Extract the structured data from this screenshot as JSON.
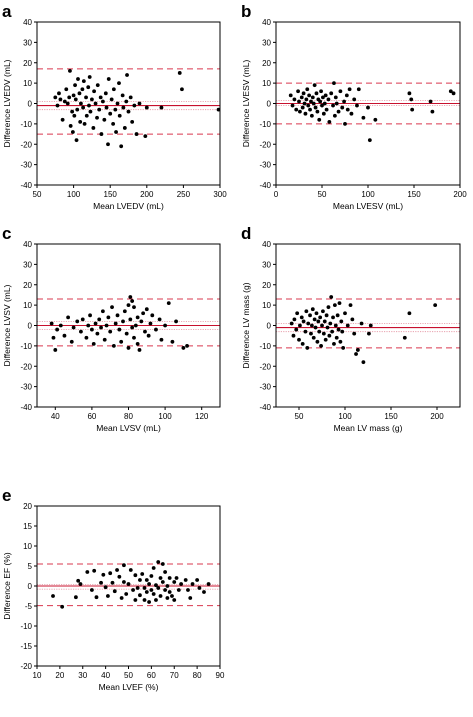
{
  "colors": {
    "mean_line": "#c8102e",
    "limit_line": "#d9384f",
    "ci_line": "#e8a0ad",
    "point": "#000000",
    "frame": "#000000"
  },
  "chart_data": [
    {
      "panel": "a",
      "type": "scatter",
      "xlabel": "Mean LVEDV (mL)",
      "ylabel": "Difference LVEDV (mL)",
      "xlim": [
        50,
        300
      ],
      "ylim": [
        -40,
        40
      ],
      "xticks": [
        50,
        100,
        150,
        200,
        250,
        300
      ],
      "yticks": [
        -40,
        -30,
        -20,
        -10,
        0,
        10,
        20,
        30,
        40
      ],
      "grid": false,
      "mean_diff": -1,
      "mean_ci": [
        -3,
        1
      ],
      "loa_upper": 17,
      "loa_lower": -15,
      "points": [
        [
          75,
          3
        ],
        [
          78,
          -1
        ],
        [
          80,
          5
        ],
        [
          82,
          2
        ],
        [
          85,
          -8
        ],
        [
          88,
          1
        ],
        [
          90,
          7
        ],
        [
          92,
          0
        ],
        [
          94,
          3
        ],
        [
          95,
          16
        ],
        [
          96,
          -11
        ],
        [
          98,
          -4
        ],
        [
          99,
          -14
        ],
        [
          100,
          4
        ],
        [
          101,
          -6
        ],
        [
          102,
          9
        ],
        [
          103,
          2
        ],
        [
          104,
          -18
        ],
        [
          105,
          -3
        ],
        [
          106,
          12
        ],
        [
          108,
          5
        ],
        [
          109,
          -9
        ],
        [
          110,
          0
        ],
        [
          112,
          7
        ],
        [
          113,
          -2
        ],
        [
          114,
          11
        ],
        [
          115,
          -10
        ],
        [
          117,
          3
        ],
        [
          118,
          -6
        ],
        [
          120,
          8
        ],
        [
          121,
          -1
        ],
        [
          122,
          13
        ],
        [
          123,
          -4
        ],
        [
          125,
          2
        ],
        [
          127,
          -12
        ],
        [
          128,
          6
        ],
        [
          130,
          0
        ],
        [
          132,
          -7
        ],
        [
          133,
          9
        ],
        [
          135,
          -3
        ],
        [
          137,
          3
        ],
        [
          138,
          -15
        ],
        [
          140,
          1
        ],
        [
          142,
          -8
        ],
        [
          144,
          5
        ],
        [
          145,
          -2
        ],
        [
          147,
          -20
        ],
        [
          148,
          12
        ],
        [
          150,
          -5
        ],
        [
          152,
          2
        ],
        [
          154,
          -10
        ],
        [
          155,
          7
        ],
        [
          157,
          -3
        ],
        [
          158,
          -14
        ],
        [
          160,
          0
        ],
        [
          162,
          10
        ],
        [
          163,
          -6
        ],
        [
          165,
          -21
        ],
        [
          167,
          4
        ],
        [
          168,
          -2
        ],
        [
          170,
          -12
        ],
        [
          172,
          1
        ],
        [
          173,
          14
        ],
        [
          175,
          -4
        ],
        [
          178,
          3
        ],
        [
          180,
          -9
        ],
        [
          183,
          -1
        ],
        [
          186,
          -15
        ],
        [
          190,
          0
        ],
        [
          198,
          -16
        ],
        [
          200,
          -2
        ],
        [
          220,
          -2
        ],
        [
          245,
          15
        ],
        [
          248,
          7
        ],
        [
          298,
          -3
        ]
      ]
    },
    {
      "panel": "b",
      "type": "scatter",
      "xlabel": "Mean LVESV (mL)",
      "ylabel": "Difference LVESV (mL)",
      "xlim": [
        0,
        200
      ],
      "ylim": [
        -40,
        40
      ],
      "xticks": [
        0,
        50,
        100,
        150,
        200
      ],
      "yticks": [
        -40,
        -30,
        -20,
        -10,
        0,
        10,
        20,
        30,
        40
      ],
      "grid": false,
      "mean_diff": 0,
      "mean_ci": [
        -1,
        1.5
      ],
      "loa_upper": 10,
      "loa_lower": -10,
      "points": [
        [
          16,
          4
        ],
        [
          18,
          -1
        ],
        [
          20,
          2
        ],
        [
          22,
          -3
        ],
        [
          24,
          6
        ],
        [
          25,
          1
        ],
        [
          26,
          -4
        ],
        [
          28,
          3
        ],
        [
          29,
          -2
        ],
        [
          30,
          5
        ],
        [
          31,
          0
        ],
        [
          32,
          -5
        ],
        [
          33,
          2
        ],
        [
          34,
          7
        ],
        [
          35,
          -1
        ],
        [
          36,
          4
        ],
        [
          37,
          -3
        ],
        [
          38,
          1
        ],
        [
          39,
          -6
        ],
        [
          40,
          3
        ],
        [
          41,
          0
        ],
        [
          42,
          9
        ],
        [
          43,
          -2
        ],
        [
          44,
          5
        ],
        [
          45,
          -4
        ],
        [
          46,
          2
        ],
        [
          47,
          -8
        ],
        [
          48,
          1
        ],
        [
          49,
          6
        ],
        [
          50,
          -1
        ],
        [
          51,
          3
        ],
        [
          52,
          -5
        ],
        [
          53,
          0
        ],
        [
          54,
          4
        ],
        [
          55,
          -3
        ],
        [
          57,
          2
        ],
        [
          58,
          -9
        ],
        [
          60,
          5
        ],
        [
          62,
          -1
        ],
        [
          63,
          10
        ],
        [
          64,
          -6
        ],
        [
          65,
          3
        ],
        [
          66,
          0
        ],
        [
          68,
          -4
        ],
        [
          70,
          6
        ],
        [
          72,
          -2
        ],
        [
          74,
          1
        ],
        [
          75,
          -10
        ],
        [
          77,
          4
        ],
        [
          78,
          -3
        ],
        [
          80,
          7
        ],
        [
          82,
          -5
        ],
        [
          85,
          2
        ],
        [
          88,
          -1
        ],
        [
          90,
          7
        ],
        [
          95,
          -7
        ],
        [
          100,
          -2
        ],
        [
          102,
          -18
        ],
        [
          108,
          -8
        ],
        [
          145,
          5
        ],
        [
          147,
          2
        ],
        [
          148,
          -3
        ],
        [
          168,
          1
        ],
        [
          170,
          -4
        ],
        [
          190,
          6
        ],
        [
          193,
          5
        ]
      ]
    },
    {
      "panel": "c",
      "type": "scatter",
      "xlabel": "Mean LVSV (mL)",
      "ylabel": "Difference LVSV (mL)",
      "xlim": [
        30,
        130
      ],
      "ylim": [
        -40,
        40
      ],
      "xticks": [
        40,
        60,
        80,
        100,
        120
      ],
      "yticks": [
        -40,
        -30,
        -20,
        -10,
        0,
        10,
        20,
        30,
        40
      ],
      "grid": false,
      "mean_diff": 0,
      "mean_ci": [
        -2,
        2
      ],
      "loa_upper": 13,
      "loa_lower": -10,
      "points": [
        [
          38,
          1
        ],
        [
          39,
          -6
        ],
        [
          40,
          -12
        ],
        [
          41,
          -2
        ],
        [
          43,
          0
        ],
        [
          45,
          -5
        ],
        [
          47,
          4
        ],
        [
          49,
          -8
        ],
        [
          50,
          -1
        ],
        [
          52,
          2
        ],
        [
          54,
          -3
        ],
        [
          55,
          3
        ],
        [
          57,
          -6
        ],
        [
          58,
          0
        ],
        [
          59,
          5
        ],
        [
          60,
          -2
        ],
        [
          61,
          -9
        ],
        [
          62,
          1
        ],
        [
          63,
          -4
        ],
        [
          64,
          3
        ],
        [
          65,
          -1
        ],
        [
          66,
          7
        ],
        [
          67,
          -7
        ],
        [
          68,
          0
        ],
        [
          69,
          4
        ],
        [
          70,
          -3
        ],
        [
          71,
          9
        ],
        [
          72,
          -10
        ],
        [
          73,
          1
        ],
        [
          74,
          5
        ],
        [
          75,
          -2
        ],
        [
          76,
          -8
        ],
        [
          77,
          2
        ],
        [
          78,
          7
        ],
        [
          79,
          -4
        ],
        [
          80,
          10
        ],
        [
          80,
          -11
        ],
        [
          81,
          14
        ],
        [
          81,
          3
        ],
        [
          82,
          -1
        ],
        [
          82,
          12
        ],
        [
          83,
          -6
        ],
        [
          83,
          9
        ],
        [
          84,
          0
        ],
        [
          85,
          4
        ],
        [
          85,
          -9
        ],
        [
          86,
          -12
        ],
        [
          87,
          2
        ],
        [
          88,
          6
        ],
        [
          89,
          -3
        ],
        [
          90,
          8
        ],
        [
          91,
          -5
        ],
        [
          92,
          1
        ],
        [
          93,
          5
        ],
        [
          95,
          -2
        ],
        [
          97,
          3
        ],
        [
          98,
          -7
        ],
        [
          100,
          0
        ],
        [
          102,
          11
        ],
        [
          104,
          -8
        ],
        [
          106,
          2
        ],
        [
          110,
          -11
        ],
        [
          112,
          -10
        ]
      ]
    },
    {
      "panel": "d",
      "type": "scatter",
      "xlabel": "Mean LV mass (g)",
      "ylabel": "Difference LV mass (g)",
      "xlim": [
        25,
        225
      ],
      "ylim": [
        -40,
        40
      ],
      "xticks": [
        50,
        100,
        150,
        200
      ],
      "yticks": [
        -40,
        -30,
        -20,
        -10,
        0,
        10,
        20,
        30,
        40
      ],
      "grid": false,
      "mean_diff": -1,
      "mean_ci": [
        -3,
        1
      ],
      "loa_upper": 13,
      "loa_lower": -11,
      "points": [
        [
          42,
          1
        ],
        [
          44,
          -5
        ],
        [
          45,
          3
        ],
        [
          47,
          -2
        ],
        [
          48,
          6
        ],
        [
          50,
          -7
        ],
        [
          51,
          0
        ],
        [
          53,
          4
        ],
        [
          54,
          -9
        ],
        [
          55,
          2
        ],
        [
          57,
          -3
        ],
        [
          58,
          7
        ],
        [
          59,
          -11
        ],
        [
          60,
          1
        ],
        [
          62,
          5
        ],
        [
          63,
          -4
        ],
        [
          64,
          0
        ],
        [
          65,
          8
        ],
        [
          66,
          -6
        ],
        [
          67,
          3
        ],
        [
          68,
          -1
        ],
        [
          69,
          6
        ],
        [
          70,
          -8
        ],
        [
          71,
          2
        ],
        [
          72,
          -3
        ],
        [
          73,
          4
        ],
        [
          74,
          -10
        ],
        [
          75,
          0
        ],
        [
          76,
          7
        ],
        [
          77,
          -4
        ],
        [
          78,
          2
        ],
        [
          79,
          -7
        ],
        [
          80,
          5
        ],
        [
          81,
          -1
        ],
        [
          82,
          9
        ],
        [
          83,
          -5
        ],
        [
          84,
          1
        ],
        [
          85,
          14
        ],
        [
          86,
          -3
        ],
        [
          87,
          4
        ],
        [
          88,
          -9
        ],
        [
          89,
          10
        ],
        [
          90,
          0
        ],
        [
          91,
          -6
        ],
        [
          92,
          5
        ],
        [
          93,
          -2
        ],
        [
          94,
          11
        ],
        [
          95,
          -8
        ],
        [
          96,
          2
        ],
        [
          97,
          -3
        ],
        [
          98,
          -11
        ],
        [
          100,
          6
        ],
        [
          103,
          0
        ],
        [
          106,
          10
        ],
        [
          108,
          3
        ],
        [
          110,
          -4
        ],
        [
          112,
          -14
        ],
        [
          114,
          -12
        ],
        [
          118,
          1
        ],
        [
          120,
          -18
        ],
        [
          126,
          -4
        ],
        [
          128,
          0
        ],
        [
          165,
          -6
        ],
        [
          170,
          6
        ],
        [
          198,
          10
        ]
      ]
    },
    {
      "panel": "e",
      "type": "scatter",
      "xlabel": "Mean LVEF (%)",
      "ylabel": "Difference EF (%)",
      "xlim": [
        10,
        90
      ],
      "ylim": [
        -20,
        20
      ],
      "xticks": [
        10,
        20,
        30,
        40,
        50,
        60,
        70,
        80,
        90
      ],
      "yticks": [
        -20,
        -15,
        -10,
        -5,
        0,
        5,
        10,
        15,
        20
      ],
      "grid": false,
      "mean_diff": 0,
      "mean_ci": [
        -0.8,
        0.4
      ],
      "loa_upper": 5.5,
      "loa_lower": -4.9,
      "points": [
        [
          17,
          -2.5
        ],
        [
          21,
          -5.2
        ],
        [
          27,
          -2.8
        ],
        [
          28,
          1.3
        ],
        [
          29,
          0.5
        ],
        [
          32,
          3.5
        ],
        [
          34,
          -1
        ],
        [
          35,
          3.8
        ],
        [
          36,
          -2.8
        ],
        [
          38,
          0.8
        ],
        [
          39,
          2.8
        ],
        [
          40,
          -0.3
        ],
        [
          41,
          -2.5
        ],
        [
          42,
          3.2
        ],
        [
          43,
          0.8
        ],
        [
          44,
          -1.3
        ],
        [
          45,
          4
        ],
        [
          46,
          2.3
        ],
        [
          47,
          -3
        ],
        [
          48,
          1
        ],
        [
          48,
          5.2
        ],
        [
          49,
          -2
        ],
        [
          50,
          0.5
        ],
        [
          51,
          4
        ],
        [
          52,
          -1
        ],
        [
          53,
          2.7
        ],
        [
          53,
          -3.5
        ],
        [
          54,
          -0.5
        ],
        [
          55,
          1.5
        ],
        [
          55,
          -2.3
        ],
        [
          56,
          3
        ],
        [
          57,
          -0.5
        ],
        [
          57,
          -3.5
        ],
        [
          58,
          1.5
        ],
        [
          58,
          -1.5
        ],
        [
          59,
          0.5
        ],
        [
          59,
          -4
        ],
        [
          60,
          2.5
        ],
        [
          60,
          -1
        ],
        [
          61,
          4.5
        ],
        [
          61,
          -2
        ],
        [
          62,
          0.2
        ],
        [
          62,
          -3.5
        ],
        [
          63,
          6
        ],
        [
          63,
          -0.5
        ],
        [
          64,
          2
        ],
        [
          64,
          -2.5
        ],
        [
          65,
          5.5
        ],
        [
          65,
          1
        ],
        [
          66,
          -1
        ],
        [
          66,
          3.5
        ],
        [
          67,
          -3
        ],
        [
          67,
          0
        ],
        [
          68,
          2
        ],
        [
          68,
          -1.5
        ],
        [
          69,
          -2.5
        ],
        [
          70,
          1
        ],
        [
          70,
          -3.5
        ],
        [
          71,
          2
        ],
        [
          72,
          -1
        ],
        [
          73,
          0.5
        ],
        [
          75,
          1.5
        ],
        [
          76,
          -1
        ],
        [
          77,
          -3
        ],
        [
          78,
          0.5
        ],
        [
          80,
          1.5
        ],
        [
          81,
          -0.5
        ],
        [
          83,
          -1.5
        ],
        [
          85,
          0.5
        ]
      ]
    }
  ]
}
